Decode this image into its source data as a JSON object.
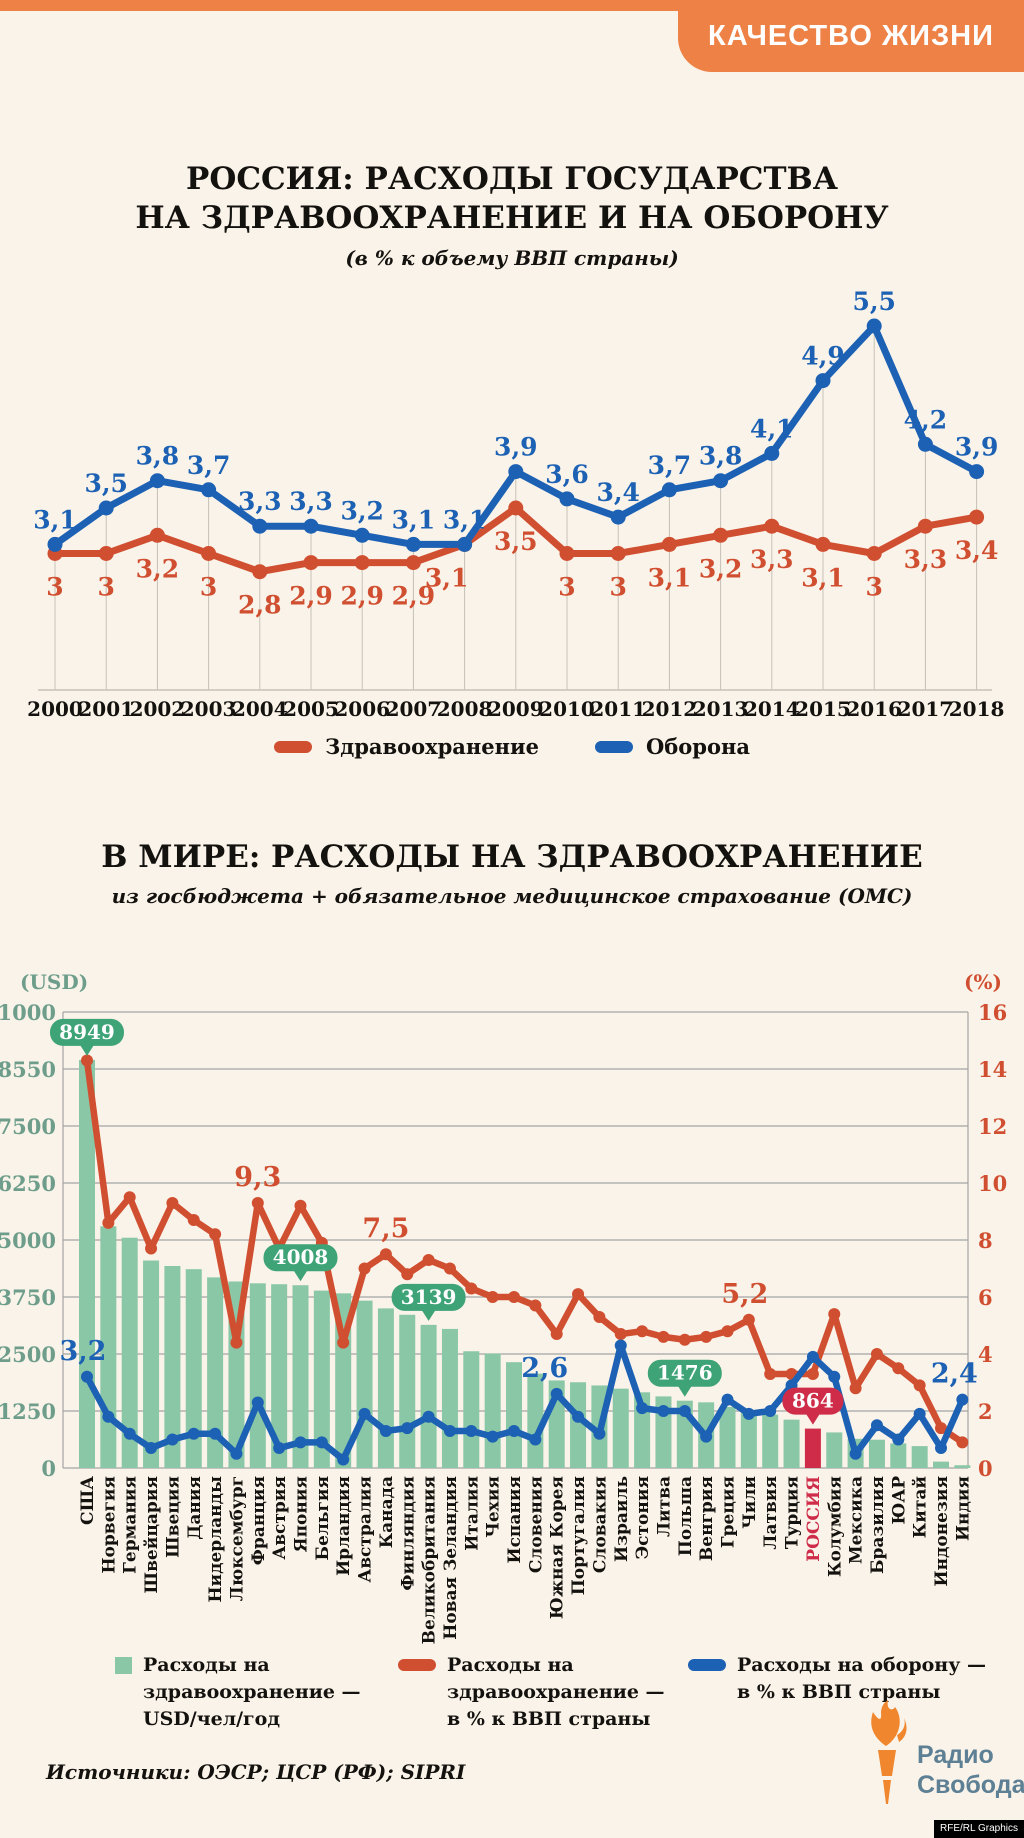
{
  "page": {
    "tag_label": "КАЧЕСТВО ЖИЗНИ"
  },
  "colors": {
    "orange": "#EE8146",
    "red": "#D14F31",
    "blue": "#1C61B3",
    "bar_green": "#89C7A6",
    "badge_green": "#3EA377",
    "crimson": "#CE2C48",
    "tick_green": "#6E9E8B",
    "background": "#FAF3E9",
    "grid": "#A5A5A5",
    "dropline": "#C6C1B6",
    "logo_text": "#5E8095",
    "flame": "#F0872E"
  },
  "chart1": {
    "title_line1": "РОССИЯ: РАСХОДЫ ГОСУДАРСТВА",
    "title_line2": "НА ЗДРАВООХРАНЕНИЕ И НА ОБОРОНУ",
    "subtitle": "(в % к объему ВВП страны)",
    "chart_data": {
      "type": "line",
      "x": [
        "2000",
        "2001",
        "2002",
        "2003",
        "2004",
        "2005",
        "2006",
        "2007",
        "2008",
        "2009",
        "2010",
        "2011",
        "2012",
        "2013",
        "2014",
        "2015",
        "2016",
        "2017",
        "2018"
      ],
      "series": [
        {
          "name": "Здравоохранение",
          "color": "#D14F31",
          "values": [
            3,
            3,
            3.2,
            3,
            2.8,
            2.9,
            2.9,
            2.9,
            3.1,
            3.5,
            3,
            3,
            3.1,
            3.2,
            3.3,
            3.1,
            3,
            3.3,
            3.4
          ]
        },
        {
          "name": "Оборона",
          "color": "#1C61B3",
          "values": [
            3.1,
            3.5,
            3.8,
            3.7,
            3.3,
            3.3,
            3.2,
            3.1,
            3.1,
            3.9,
            3.6,
            3.4,
            3.7,
            3.8,
            4.1,
            4.9,
            5.5,
            4.2,
            3.9
          ]
        }
      ],
      "ylabel": "% ВВП",
      "ylim": [
        1.5,
        6
      ],
      "grid": "vertical droplines",
      "legend_position": "bottom"
    }
  },
  "chart2": {
    "title": "В МИРЕ: РАСХОДЫ НА ЗДРАВООХРАНЕНИЕ",
    "subtitle": "из госбюджета + обязательное медицинское страхование (ОМС)",
    "left_axis": {
      "unit": "(USD)",
      "ticks": [
        "1000",
        "8550",
        "7500",
        "6250",
        "5000",
        "3750",
        "2500",
        "1250",
        "0"
      ],
      "range": [
        0,
        10000
      ]
    },
    "right_axis": {
      "unit": "(%)",
      "ticks": [
        "16",
        "14",
        "12",
        "10",
        "8",
        "6",
        "4",
        "2",
        "0"
      ],
      "range": [
        0,
        16
      ]
    },
    "highlight_country": "РОССИЯ",
    "highlight_index": 34,
    "chart_data": {
      "type": "bar+line",
      "categories": [
        "США",
        "Норвегия",
        "Германия",
        "Швейцария",
        "Швеция",
        "Дания",
        "Нидерланды",
        "Люксембург",
        "Франция",
        "Австрия",
        "Япония",
        "Бельгия",
        "Ирландия",
        "Австралия",
        "Канада",
        "Финляндия",
        "Великобритания",
        "Новая Зеландия",
        "Италия",
        "Чехия",
        "Испания",
        "Словения",
        "Южная Корея",
        "Португалия",
        "Словакия",
        "Израиль",
        "Эстония",
        "Литва",
        "Польша",
        "Венгрия",
        "Греция",
        "Чили",
        "Латвия",
        "Турция",
        "РОССИЯ",
        "Колумбия",
        "Мексика",
        "Бразилия",
        "ЮАР",
        "Китай",
        "Индонезия",
        "Индия"
      ],
      "series": [
        {
          "name": "Расходы на здравоохранение — USD/чел/год",
          "type": "bar",
          "axis": "left",
          "color": "#89C7A6",
          "values": [
            8949,
            5300,
            5050,
            4550,
            4430,
            4360,
            4180,
            4090,
            4050,
            4030,
            4008,
            3890,
            3830,
            3670,
            3500,
            3360,
            3139,
            3050,
            2560,
            2510,
            2320,
            2070,
            1920,
            1880,
            1810,
            1740,
            1660,
            1570,
            1476,
            1440,
            1340,
            1220,
            1170,
            1060,
            864,
            780,
            640,
            620,
            540,
            480,
            140,
            60
          ]
        },
        {
          "name": "Расходы на здравоохранение — в % к ВВП страны",
          "type": "line",
          "axis": "right",
          "color": "#D14F31",
          "values": [
            14.3,
            8.6,
            9.5,
            7.7,
            9.3,
            8.7,
            8.2,
            4.4,
            9.3,
            7.7,
            9.2,
            7.9,
            4.4,
            7.0,
            7.5,
            6.8,
            7.3,
            7.0,
            6.3,
            6.0,
            6.0,
            5.7,
            4.7,
            6.1,
            5.3,
            4.7,
            4.8,
            4.6,
            4.5,
            4.6,
            4.8,
            5.2,
            3.3,
            3.3,
            3.3,
            5.4,
            2.8,
            4.0,
            3.5,
            2.9,
            1.4,
            0.9
          ]
        },
        {
          "name": "Расходы на оборону — в % к ВВП страны",
          "type": "line",
          "axis": "right",
          "color": "#1C61B3",
          "values": [
            3.2,
            1.8,
            1.2,
            0.7,
            1.0,
            1.2,
            1.2,
            0.5,
            2.3,
            0.7,
            0.9,
            0.9,
            0.3,
            1.9,
            1.3,
            1.4,
            1.8,
            1.3,
            1.3,
            1.1,
            1.3,
            1.0,
            2.6,
            1.8,
            1.2,
            4.3,
            2.1,
            2.0,
            2.0,
            1.1,
            2.4,
            1.9,
            2.0,
            2.9,
            3.9,
            3.2,
            0.5,
            1.5,
            1.0,
            1.9,
            0.7,
            2.4
          ]
        }
      ],
      "bar_badges": [
        {
          "index": 0,
          "label": "8949"
        },
        {
          "index": 10,
          "label": "4008"
        },
        {
          "index": 16,
          "label": "3139"
        },
        {
          "index": 28,
          "label": "1476"
        },
        {
          "index": 34,
          "label": "864"
        }
      ],
      "line_labels": [
        {
          "series": 2,
          "index": 0,
          "text": "3,2",
          "dx": -4
        },
        {
          "series": 1,
          "index": 8,
          "text": "9,3",
          "dx": 0
        },
        {
          "series": 1,
          "index": 14,
          "text": "7,5",
          "dx": 0
        },
        {
          "series": 2,
          "index": 22,
          "text": "2,6",
          "dx": -12
        },
        {
          "series": 1,
          "index": 31,
          "text": "5,2",
          "dx": -4
        },
        {
          "series": 2,
          "index": 41,
          "text": "2,4",
          "dx": -8
        }
      ]
    },
    "legend": [
      {
        "swatch": "square-green",
        "lines": [
          "Расходы на",
          "здравоохранение —",
          "USD/чел/год"
        ]
      },
      {
        "swatch": "pill-red",
        "lines": [
          "Расходы на",
          "здравоохранение —",
          "в % к ВВП страны"
        ]
      },
      {
        "swatch": "pill-blue",
        "lines": [
          "Расходы на оборону —",
          "в % к ВВП страны"
        ]
      }
    ]
  },
  "footer": {
    "source": "Источники: ОЭСР; ЦСР (РФ); SIPRI",
    "logo_line1": "Радио",
    "logo_line2": "Свобода",
    "credit": "RFE/RL Graphics"
  }
}
